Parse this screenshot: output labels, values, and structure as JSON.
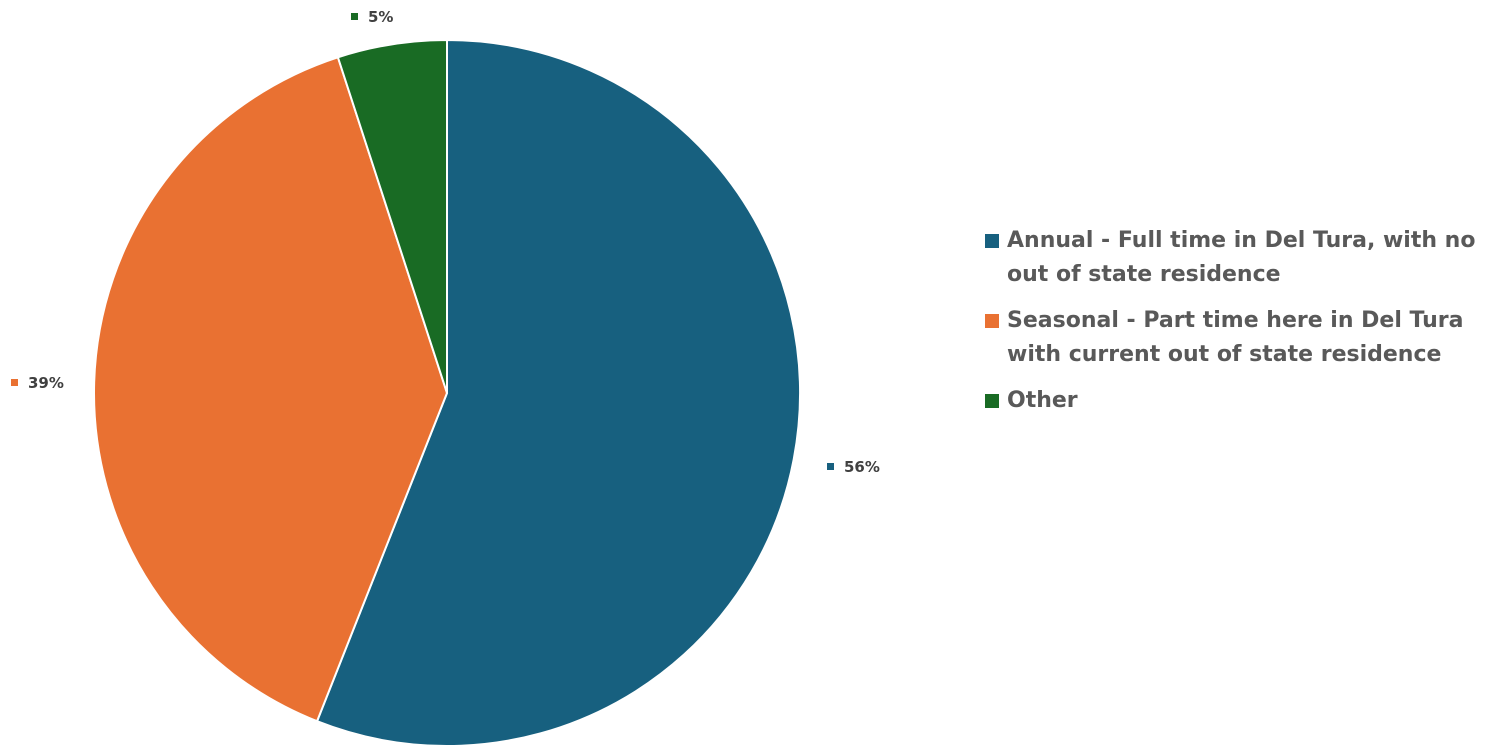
{
  "chart_data": {
    "type": "pie",
    "title": "",
    "categories": [
      "Annual - Full time in Del Tura, with no out of state residence",
      "Seasonal - Part time here in Del Tura with current out of state residence",
      "Other"
    ],
    "values": [
      56,
      39,
      5
    ],
    "data_labels": [
      "56%",
      "39%",
      "5%"
    ],
    "colors": [
      "#17607f",
      "#e97132",
      "#196b24"
    ],
    "legend_placement": "right",
    "start_angle_deg": 0,
    "direction": "clockwise"
  }
}
